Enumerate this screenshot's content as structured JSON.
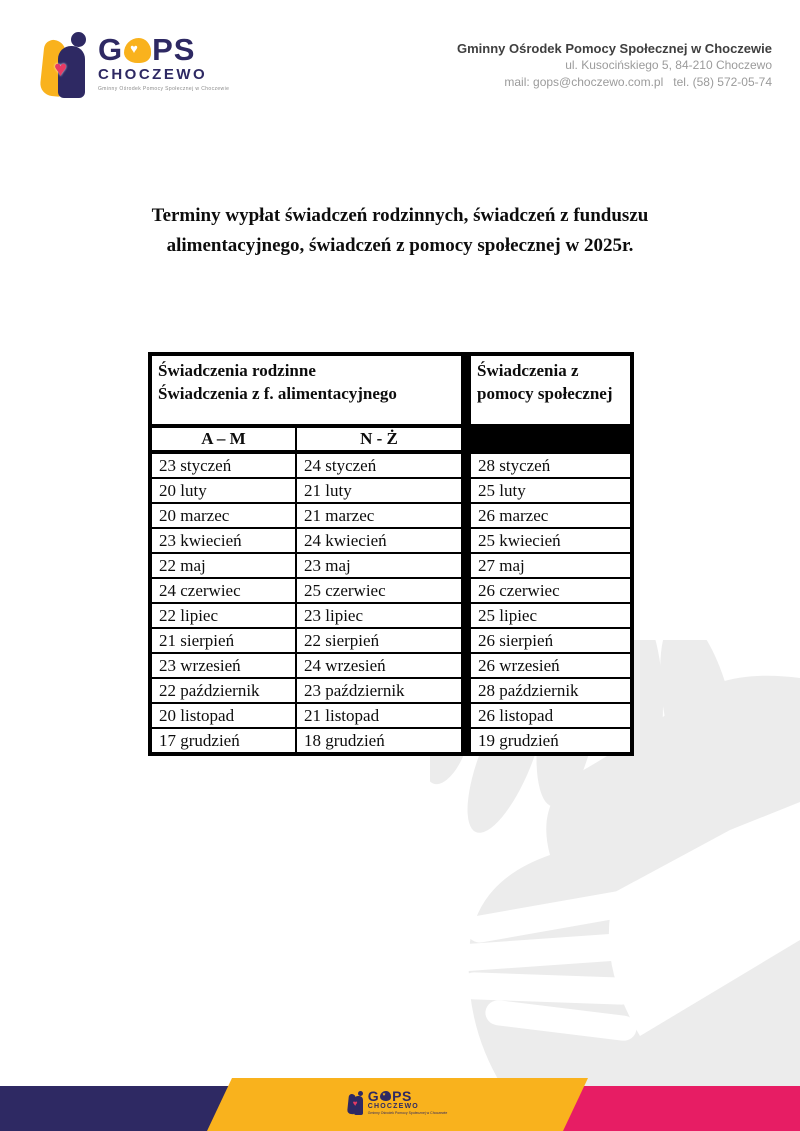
{
  "colors": {
    "navy": "#2e2963",
    "yellow": "#f9b21d",
    "pink": "#e71d64",
    "watermark_gray": "#ececec"
  },
  "logo": {
    "acronym_prefix": "G",
    "acronym_suffix": "PS",
    "heart": "♥",
    "city": "CHOCZEWO",
    "tagline": "Gminny Ośrodek Pomocy Społecznej w Choczewie"
  },
  "header": {
    "org_name": "Gminny Ośrodek Pomocy Społecznej w Choczewie",
    "address_line": "ul. Kusocińskiego 5, 84-210 Choczewo",
    "contact_line": "mail: gops@choczewo.com.pl   tel. (58) 572-05-74"
  },
  "title": {
    "line1": "Terminy wypłat świadczeń rodzinnych, świadczeń z funduszu",
    "line2": "alimentacyjnego, świadczeń z pomocy społecznej w 2025r."
  },
  "table": {
    "group_left_line1": "Świadczenia rodzinne",
    "group_left_line2": "Świadczenia z f. alimentacyjnego",
    "group_right": "Świadczenia z pomocy społecznej",
    "subheaders": [
      "A – M",
      "N - Ż",
      ""
    ],
    "rows": [
      [
        "23 styczeń",
        "24 styczeń",
        "28 styczeń"
      ],
      [
        "20 luty",
        "21 luty",
        "25 luty"
      ],
      [
        "20 marzec",
        "21 marzec",
        "26 marzec"
      ],
      [
        "23 kwiecień",
        "24 kwiecień",
        "25 kwiecień"
      ],
      [
        "22 maj",
        "23 maj",
        "27 maj"
      ],
      [
        "24 czerwiec",
        "25 czerwiec",
        "26 czerwiec"
      ],
      [
        "22 lipiec",
        "23 lipiec",
        "25 lipiec"
      ],
      [
        "21 sierpień",
        "22 sierpień",
        "26 sierpień"
      ],
      [
        "23 wrzesień",
        "24 wrzesień",
        "26 wrzesień"
      ],
      [
        "22 październik",
        "23 październik",
        "28 październik"
      ],
      [
        "20 listopad",
        "21 listopad",
        "26 listopad"
      ],
      [
        "17 grudzień",
        "18 grudzień",
        "19 grudzień"
      ]
    ]
  }
}
